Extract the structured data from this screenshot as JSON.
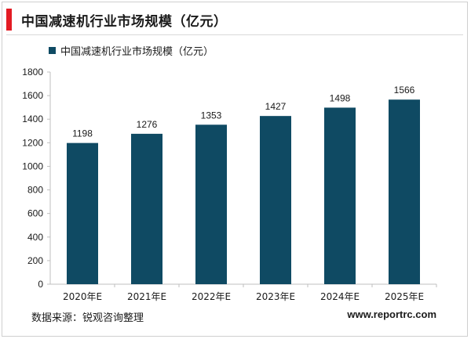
{
  "header": {
    "title": "中国减速机行业市场规模（亿元）",
    "accent_color": "#e31b23"
  },
  "footer": {
    "source": "数据来源：锐观咨询整理",
    "url": "www.reportrc.com"
  },
  "chart_data": {
    "type": "bar",
    "title": "中国减速机行业市场规模（亿元）",
    "categories": [
      "2020年E",
      "2021年E",
      "2022年E",
      "2023年E",
      "2024年E",
      "2025年E"
    ],
    "series": [
      {
        "name": "中国减速机行业市场规模（亿元）",
        "values": [
          1198,
          1276,
          1353,
          1427,
          1498,
          1566
        ],
        "color": "#0f4a63"
      }
    ],
    "yticks": [
      0,
      200,
      400,
      600,
      800,
      1000,
      1200,
      1400,
      1600,
      1800
    ],
    "ylim": [
      0,
      1800
    ],
    "xlabel": "",
    "ylabel": "",
    "grid": false,
    "legend": "top-left",
    "data_labels": true
  }
}
